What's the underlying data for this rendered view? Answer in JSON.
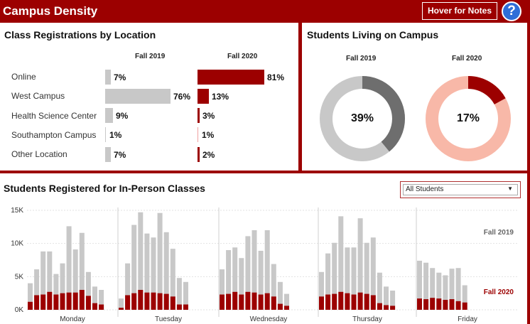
{
  "header": {
    "title": "Campus Density",
    "notes_label": "Hover for Notes",
    "help_label": "?"
  },
  "registrations": {
    "title": "Class Registrations by Location",
    "col_2019": "Fall 2019",
    "col_2020": "Fall 2020",
    "rows": [
      {
        "label": "Online",
        "v2019": 7,
        "v2020": 81,
        "t2019": "7%",
        "t2020": "81%"
      },
      {
        "label": "West Campus",
        "v2019": 76,
        "v2020": 13,
        "t2019": "76%",
        "t2020": "13%"
      },
      {
        "label": "Health Science Center",
        "v2019": 9,
        "v2020": 3,
        "t2019": "9%",
        "t2020": "3%"
      },
      {
        "label": "Southampton Campus",
        "v2019": 1,
        "v2020": 1,
        "t2019": "1%",
        "t2020": "1%"
      },
      {
        "label": "Other Location",
        "v2019": 7,
        "v2020": 2,
        "t2019": "7%",
        "t2020": "2%"
      }
    ]
  },
  "living": {
    "title": "Students Living on Campus",
    "fall2019": {
      "label": "Fall 2019",
      "value": 39,
      "text": "39%"
    },
    "fall2020": {
      "label": "Fall 2020",
      "value": 17,
      "text": "17%"
    }
  },
  "inperson": {
    "title": "Students Registered for In-Person Classes",
    "filter_value": "All Students",
    "filter_arrow": "▼"
  },
  "colors": {
    "brand": "#9c0000",
    "gray_bar": "#c8c8c8",
    "gray_dark": "#6e6e6e",
    "pink": "#f8b8a8",
    "help_blue": "#2f6ed8"
  },
  "chart_data": {
    "type": "bar",
    "title": "Students Registered for In-Person Classes",
    "ylim": [
      0,
      15000
    ],
    "yticks": [
      {
        "v": 0,
        "t": "0K"
      },
      {
        "v": 5000,
        "t": "5K"
      },
      {
        "v": 10000,
        "t": "10K"
      },
      {
        "v": 15000,
        "t": "15K"
      }
    ],
    "days": [
      "Monday",
      "Tuesday",
      "Wednesday",
      "Thursday",
      "Friday"
    ],
    "series": [
      {
        "name": "Fall 2019",
        "color": "#c8c8c8",
        "values": [
          [
            4000,
            6100,
            8800,
            8800,
            5400,
            7000,
            12600,
            9100,
            11600,
            5700,
            3500,
            3000
          ],
          [
            1700,
            7000,
            12800,
            14700,
            11500,
            10900,
            14600,
            11700,
            9200,
            4800,
            4200
          ],
          [
            6100,
            9000,
            9400,
            7800,
            11100,
            12000,
            8900,
            12000,
            6900,
            4200,
            2400
          ],
          [
            5700,
            8500,
            10100,
            14100,
            9400,
            9400,
            13800,
            10100,
            10900,
            5600,
            3500,
            2900
          ],
          [
            7400,
            7100,
            6300,
            5600,
            5200,
            6200,
            6300,
            3700
          ]
        ]
      },
      {
        "name": "Fall 2020",
        "color": "#9c0000",
        "values": [
          [
            1200,
            2200,
            2300,
            2700,
            2300,
            2500,
            2600,
            2600,
            3000,
            2100,
            1000,
            800
          ],
          [
            300,
            2200,
            2500,
            3000,
            2600,
            2600,
            2500,
            2400,
            2000,
            800,
            800
          ],
          [
            2300,
            2400,
            2700,
            2300,
            2700,
            2600,
            2300,
            2500,
            2000,
            900,
            600
          ],
          [
            2000,
            2300,
            2400,
            2700,
            2500,
            2300,
            2600,
            2400,
            2200,
            1000,
            700,
            600
          ],
          [
            1700,
            1600,
            1800,
            1700,
            1500,
            1600,
            1300,
            1100
          ]
        ]
      }
    ],
    "legend": [
      {
        "text": "Fall 2019",
        "color": "#666666"
      },
      {
        "text": "Fall 2020",
        "color": "#9c0000"
      }
    ]
  }
}
